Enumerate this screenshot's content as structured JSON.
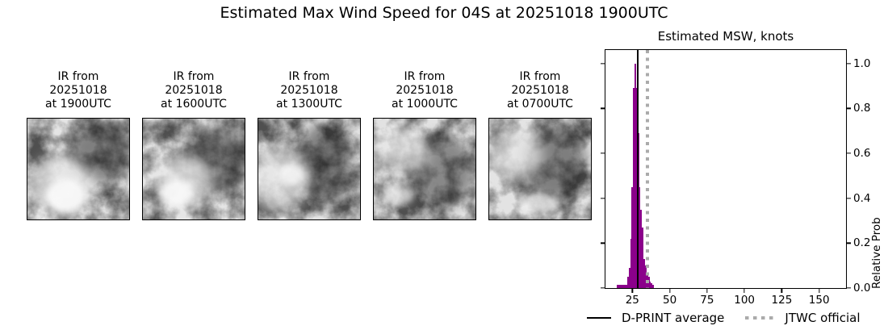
{
  "title": "Estimated Max Wind Speed for 04S at 20251018 1900UTC",
  "ir_panels": [
    {
      "label_lines": [
        "IR from",
        "20251018",
        "at 1900UTC"
      ]
    },
    {
      "label_lines": [
        "IR from",
        "20251018",
        "at 1600UTC"
      ]
    },
    {
      "label_lines": [
        "IR from",
        "20251018",
        "at 1300UTC"
      ]
    },
    {
      "label_lines": [
        "IR from",
        "20251018",
        "at 1000UTC"
      ]
    },
    {
      "label_lines": [
        "IR from",
        "20251018",
        "at 0700UTC"
      ]
    }
  ],
  "chart_data": {
    "type": "bar",
    "title": "Estimated MSW, knots",
    "xlabel": "",
    "ylabel": "Relative Prob",
    "bar_color": "#8B008B",
    "bin_width": 1,
    "x": [
      15,
      16,
      17,
      18,
      19,
      20,
      21,
      22,
      23,
      24,
      25,
      26,
      27,
      28,
      29,
      30,
      31,
      32,
      33,
      34,
      35,
      36,
      37,
      38,
      39
    ],
    "values": [
      0.015,
      0.015,
      0.015,
      0.015,
      0.015,
      0.015,
      0.015,
      0.05,
      0.09,
      0.22,
      0.45,
      0.89,
      1.0,
      0.89,
      0.69,
      0.45,
      0.35,
      0.27,
      0.13,
      0.1,
      0.06,
      0.05,
      0.03,
      0.02,
      0.015
    ],
    "xlim": [
      7,
      168
    ],
    "ylim": [
      0,
      1.06
    ],
    "xticks": [
      25,
      50,
      75,
      100,
      125,
      150
    ],
    "xtick_labels": [
      "25",
      "50",
      "75",
      "100",
      "125",
      "150"
    ],
    "yticks": [
      0,
      0.2,
      0.4,
      0.6,
      0.8,
      1.0
    ],
    "ytick_labels": [
      "0.0",
      "0.2",
      "0.4",
      "0.6",
      "0.8",
      "1.0"
    ],
    "grid": false,
    "legend_position": "below",
    "vlines": [
      {
        "label": "D-PRINT average",
        "x": 28.5,
        "style": "solid",
        "color": "#000000"
      },
      {
        "label": "JTWC official",
        "x": 35,
        "style": "dotted",
        "color": "#ababab"
      }
    ]
  },
  "legend": {
    "items": [
      {
        "label": "D-PRINT average",
        "style": "solid-black"
      },
      {
        "label": "JTWC official",
        "style": "dotted-gray"
      }
    ]
  }
}
